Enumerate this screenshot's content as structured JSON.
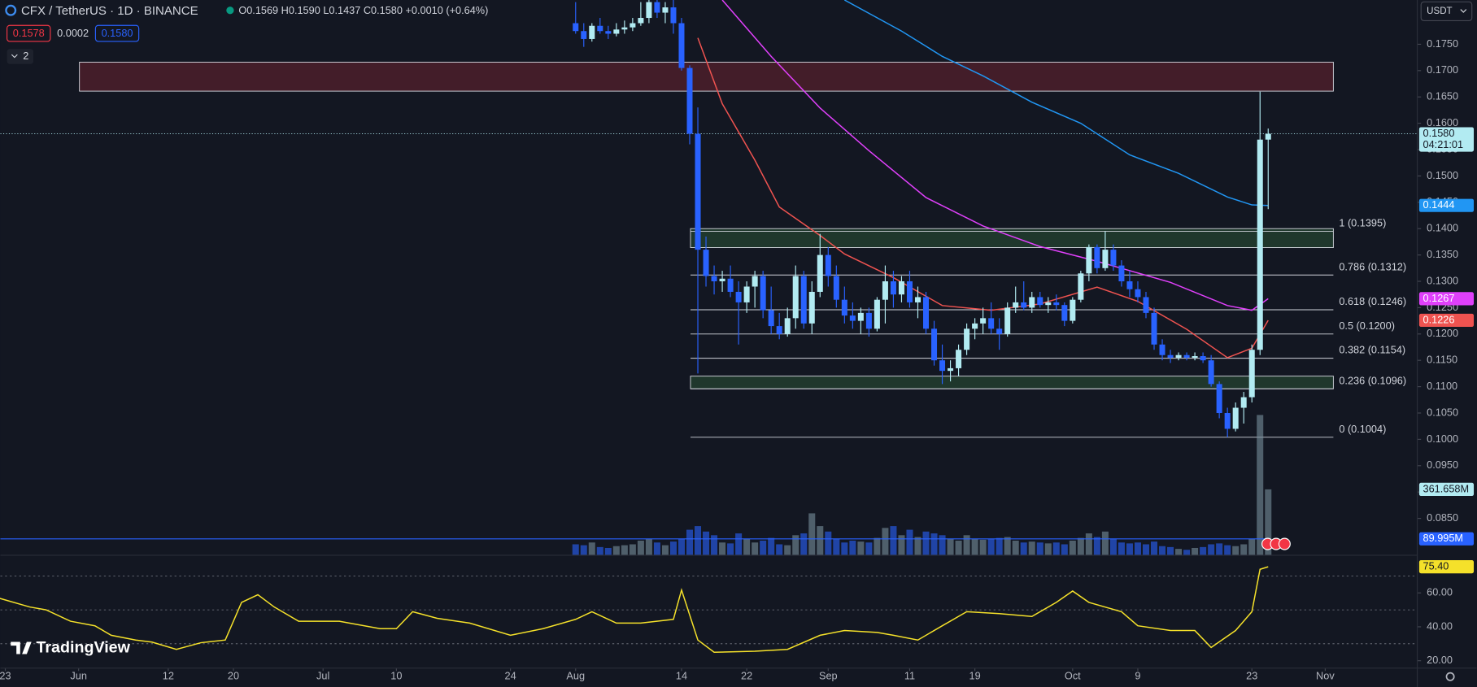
{
  "header": {
    "title": "CFX / TetherUS · 1D · BINANCE",
    "ohlc": [
      "O0.1569",
      "H0.1590",
      "L0.1437",
      "C0.1580",
      "+0.0010 (+0.64%)"
    ],
    "badges": [
      {
        "text": "0.1578",
        "color": "#f23645"
      },
      {
        "text": "0.0002",
        "color": "none"
      },
      {
        "text": "0.1580",
        "color": "#2962ff"
      }
    ],
    "indicator_count": "2",
    "currency": "USDT",
    "brand": "TradingView"
  },
  "chart_data": {
    "type": "candlestick",
    "x": [
      "Aug 1",
      "Aug 2",
      "Aug 3",
      "Aug 4",
      "Aug 5",
      "Aug 6",
      "Aug 7",
      "Aug 8",
      "Aug 9",
      "Aug 10",
      "Aug 11",
      "Aug 12",
      "Aug 13",
      "Aug 14",
      "Aug 15",
      "Aug 16",
      "Aug 17",
      "Aug 18",
      "Aug 19",
      "Aug 20",
      "Aug 21",
      "Aug 22",
      "Aug 23",
      "Aug 24",
      "Aug 25",
      "Aug 26",
      "Aug 27",
      "Aug 28",
      "Aug 29",
      "Aug 30",
      "Aug 31",
      "Sep 1",
      "Sep 2",
      "Sep 3",
      "Sep 4",
      "Sep 5",
      "Sep 6",
      "Sep 7",
      "Sep 8",
      "Sep 9",
      "Sep 10",
      "Sep 11",
      "Sep 12",
      "Sep 13",
      "Sep 14",
      "Sep 15",
      "Sep 16",
      "Sep 17",
      "Sep 18",
      "Sep 19",
      "Sep 20",
      "Sep 21",
      "Sep 22",
      "Sep 23",
      "Sep 24",
      "Sep 25",
      "Sep 26",
      "Sep 27",
      "Sep 28",
      "Sep 29",
      "Sep 30",
      "Oct 1",
      "Oct 2",
      "Oct 3",
      "Oct 4",
      "Oct 5",
      "Oct 6",
      "Oct 7",
      "Oct 8",
      "Oct 9",
      "Oct 10",
      "Oct 11",
      "Oct 12",
      "Oct 13",
      "Oct 14",
      "Oct 15",
      "Oct 16",
      "Oct 17",
      "Oct 18",
      "Oct 19",
      "Oct 20",
      "Oct 21",
      "Oct 22",
      "Oct 23",
      "Oct 24",
      "Oct 25"
    ],
    "open": [
      0.179,
      0.1775,
      0.176,
      0.1785,
      0.1775,
      0.177,
      0.1778,
      0.1782,
      0.179,
      0.18,
      0.183,
      0.181,
      0.182,
      0.179,
      0.1705,
      0.158,
      0.136,
      0.131,
      0.13,
      0.1305,
      0.128,
      0.126,
      0.129,
      0.131,
      0.1245,
      0.1215,
      0.12,
      0.123,
      0.131,
      0.122,
      0.128,
      0.135,
      0.131,
      0.1265,
      0.1235,
      0.1225,
      0.124,
      0.121,
      0.1265,
      0.13,
      0.1275,
      0.13,
      0.126,
      0.127,
      0.121,
      0.115,
      0.113,
      0.1135,
      0.117,
      0.121,
      0.122,
      0.123,
      0.121,
      0.12,
      0.125,
      0.126,
      0.125,
      0.127,
      0.1255,
      0.126,
      0.1255,
      0.1225,
      0.1265,
      0.1315,
      0.1365,
      0.1325,
      0.136,
      0.133,
      0.13,
      0.1285,
      0.127,
      0.124,
      0.118,
      0.116,
      0.1155,
      0.116,
      0.1155,
      0.1158,
      0.115,
      0.1105,
      0.105,
      0.102,
      0.106,
      0.108,
      0.117,
      0.1569
    ],
    "high": [
      0.183,
      0.179,
      0.179,
      0.18,
      0.1785,
      0.179,
      0.1795,
      0.18,
      0.183,
      0.185,
      0.185,
      0.183,
      0.185,
      0.18,
      0.171,
      0.163,
      0.1385,
      0.133,
      0.132,
      0.133,
      0.13,
      0.13,
      0.132,
      0.132,
      0.129,
      0.124,
      0.125,
      0.133,
      0.132,
      0.13,
      0.139,
      0.1365,
      0.133,
      0.129,
      0.126,
      0.125,
      0.125,
      0.127,
      0.133,
      0.132,
      0.131,
      0.132,
      0.129,
      0.128,
      0.1225,
      0.118,
      0.115,
      0.118,
      0.122,
      0.123,
      0.125,
      0.126,
      0.123,
      0.126,
      0.129,
      0.13,
      0.128,
      0.128,
      0.127,
      0.1275,
      0.126,
      0.127,
      0.132,
      0.137,
      0.137,
      0.1395,
      0.137,
      0.134,
      0.132,
      0.13,
      0.128,
      0.125,
      0.119,
      0.117,
      0.1165,
      0.1165,
      0.1165,
      0.1165,
      0.116,
      0.111,
      0.106,
      0.107,
      0.109,
      0.118,
      0.166,
      0.159
    ],
    "low": [
      0.177,
      0.1745,
      0.1755,
      0.177,
      0.176,
      0.1765,
      0.177,
      0.1775,
      0.1785,
      0.179,
      0.18,
      0.179,
      0.177,
      0.17,
      0.156,
      0.1125,
      0.129,
      0.1275,
      0.128,
      0.127,
      0.118,
      0.124,
      0.125,
      0.123,
      0.12,
      0.119,
      0.1195,
      0.121,
      0.121,
      0.12,
      0.127,
      0.129,
      0.125,
      0.122,
      0.121,
      0.12,
      0.1195,
      0.1205,
      0.122,
      0.125,
      0.126,
      0.125,
      0.123,
      0.12,
      0.114,
      0.1105,
      0.111,
      0.112,
      0.116,
      0.119,
      0.12,
      0.12,
      0.117,
      0.1195,
      0.124,
      0.1245,
      0.124,
      0.125,
      0.124,
      0.1245,
      0.1215,
      0.122,
      0.126,
      0.13,
      0.1315,
      0.132,
      0.132,
      0.129,
      0.127,
      0.126,
      0.123,
      0.117,
      0.115,
      0.1145,
      0.115,
      0.115,
      0.115,
      0.1145,
      0.11,
      0.104,
      0.1004,
      0.1015,
      0.103,
      0.107,
      0.116,
      0.1437
    ],
    "close": [
      0.1775,
      0.176,
      0.1785,
      0.1775,
      0.177,
      0.1778,
      0.1782,
      0.179,
      0.18,
      0.183,
      0.181,
      0.182,
      0.179,
      0.1705,
      0.158,
      0.136,
      0.131,
      0.13,
      0.1305,
      0.128,
      0.126,
      0.129,
      0.131,
      0.1245,
      0.1215,
      0.12,
      0.123,
      0.131,
      0.122,
      0.128,
      0.135,
      0.131,
      0.1265,
      0.1235,
      0.1225,
      0.124,
      0.121,
      0.1265,
      0.13,
      0.1275,
      0.13,
      0.126,
      0.127,
      0.121,
      0.115,
      0.113,
      0.1135,
      0.117,
      0.121,
      0.122,
      0.123,
      0.121,
      0.12,
      0.125,
      0.126,
      0.125,
      0.127,
      0.1255,
      0.126,
      0.1255,
      0.1225,
      0.1265,
      0.1315,
      0.1365,
      0.1325,
      0.136,
      0.133,
      0.13,
      0.1285,
      0.127,
      0.124,
      0.118,
      0.116,
      0.1155,
      0.116,
      0.1155,
      0.1158,
      0.115,
      0.1105,
      0.105,
      0.102,
      0.106,
      0.108,
      0.117,
      0.1569,
      0.158
    ],
    "up_color": "#b2ebf2",
    "down_color": "#2962ff",
    "xlim": [
      -70.6,
      103.3
    ],
    "xticks": [
      {
        "value": -70,
        "label": "23"
      },
      {
        "value": -61,
        "label": "Jun"
      },
      {
        "value": -50,
        "label": "12"
      },
      {
        "value": -42,
        "label": "20"
      },
      {
        "value": -31,
        "label": "Jul"
      },
      {
        "value": -22,
        "label": "10"
      },
      {
        "value": -8,
        "label": "24"
      },
      {
        "value": 0,
        "label": "Aug"
      },
      {
        "value": 13,
        "label": "14"
      },
      {
        "value": 21,
        "label": "22"
      },
      {
        "value": 31,
        "label": "Sep"
      },
      {
        "value": 41,
        "label": "11"
      },
      {
        "value": 49,
        "label": "19"
      },
      {
        "value": 61,
        "label": "Oct"
      },
      {
        "value": 69,
        "label": "9"
      },
      {
        "value": 83,
        "label": "23"
      },
      {
        "value": 92,
        "label": "Nov"
      }
    ],
    "ylim": [
      0.078,
      0.1834
    ],
    "yticks": [
      {
        "value": 0.085,
        "label": "0.0850"
      },
      {
        "value": 0.09,
        "label": "0.0900"
      },
      {
        "value": 0.095,
        "label": "0.0950"
      },
      {
        "value": 0.1,
        "label": "0.1000"
      },
      {
        "value": 0.105,
        "label": "0.1050"
      },
      {
        "value": 0.11,
        "label": "0.1100"
      },
      {
        "value": 0.115,
        "label": "0.1150"
      },
      {
        "value": 0.12,
        "label": "0.1200"
      },
      {
        "value": 0.125,
        "label": "0.1250"
      },
      {
        "value": 0.13,
        "label": "0.1300"
      },
      {
        "value": 0.135,
        "label": "0.1350"
      },
      {
        "value": 0.14,
        "label": "0.1400"
      },
      {
        "value": 0.145,
        "label": "0.1450"
      },
      {
        "value": 0.15,
        "label": "0.1500"
      },
      {
        "value": 0.155,
        "label": "0.1550"
      },
      {
        "value": 0.16,
        "label": "0.1600"
      },
      {
        "value": 0.165,
        "label": "0.1650"
      },
      {
        "value": 0.17,
        "label": "0.1700"
      },
      {
        "value": 0.175,
        "label": "0.1750"
      }
    ],
    "moving_averages": [
      {
        "color": "#2196f3",
        "x": [
          33,
          40,
          45,
          50,
          56,
          62,
          68,
          74,
          80,
          83,
          85
        ],
        "values": [
          0.1834,
          0.1775,
          0.1727,
          0.169,
          0.164,
          0.16,
          0.154,
          0.1505,
          0.146,
          0.1445,
          0.1444
        ]
      },
      {
        "color": "#e040fb",
        "x": [
          18,
          24,
          30,
          36,
          43,
          50,
          57,
          64,
          73,
          80,
          83,
          85
        ],
        "values": [
          0.1834,
          0.1727,
          0.1629,
          0.1548,
          0.1459,
          0.1405,
          0.1366,
          0.1338,
          0.1298,
          0.1254,
          0.1245,
          0.1267
        ]
      },
      {
        "color": "#ef5350",
        "x": [
          15,
          18,
          22,
          25,
          30,
          33,
          39,
          45,
          51,
          57,
          64,
          69,
          75,
          80,
          83,
          85
        ],
        "values": [
          0.1762,
          0.1637,
          0.153,
          0.1441,
          0.1387,
          0.1352,
          0.1307,
          0.1254,
          0.1245,
          0.1257,
          0.1289,
          0.1262,
          0.1209,
          0.1155,
          0.1173,
          0.1226
        ]
      }
    ],
    "fib_range": [
      14.1,
      93
    ],
    "fib_levels": [
      {
        "value": 0.1395,
        "label": "1 (0.1395)"
      },
      {
        "value": 0.1312,
        "label": "0.786 (0.1312)"
      },
      {
        "value": 0.1246,
        "label": "0.618 (0.1246)"
      },
      {
        "value": 0.12,
        "label": "0.5 (0.1200)"
      },
      {
        "value": 0.1154,
        "label": "0.382 (0.1154)"
      },
      {
        "value": 0.1096,
        "label": "0.236 (0.1096)"
      },
      {
        "value": 0.1004,
        "label": "0 (0.1004)"
      }
    ],
    "zones": [
      {
        "color": "#f23645",
        "x": [
          -60.9,
          93
        ],
        "y": [
          0.1661,
          0.1716
        ]
      },
      {
        "color": "#4caf50",
        "x": [
          14.1,
          93
        ],
        "y": [
          0.1364,
          0.14
        ]
      },
      {
        "color": "#4caf50",
        "x": [
          14.1,
          93
        ],
        "y": [
          0.1096,
          0.112
        ]
      }
    ],
    "volume": {
      "ylim": [
        0,
        780
      ],
      "up_color": "#78909c",
      "down_color": "#2962ff",
      "values": [
        60,
        55,
        70,
        45,
        40,
        50,
        55,
        60,
        80,
        90,
        70,
        55,
        75,
        90,
        140,
        160,
        130,
        110,
        70,
        65,
        120,
        90,
        70,
        80,
        95,
        60,
        55,
        110,
        120,
        230,
        160,
        130,
        90,
        70,
        80,
        75,
        70,
        95,
        150,
        160,
        110,
        140,
        100,
        130,
        120,
        110,
        90,
        80,
        110,
        90,
        85,
        90,
        95,
        100,
        80,
        70,
        75,
        70,
        65,
        70,
        60,
        80,
        95,
        120,
        100,
        130,
        90,
        70,
        65,
        70,
        60,
        75,
        50,
        45,
        35,
        30,
        40,
        45,
        60,
        65,
        55,
        50,
        60,
        90,
        770,
        361.658
      ]
    },
    "axis_markers": [
      {
        "pane": "price",
        "value": 0.158,
        "label": "0.1580",
        "sub": "04:21:01",
        "bg": "#b2ebf2",
        "fg": "#131722",
        "line": true
      },
      {
        "pane": "price",
        "value": 0.1444,
        "label": "0.1444",
        "bg": "#2196f3",
        "fg": "#ffffff"
      },
      {
        "pane": "price",
        "value": 0.1267,
        "label": "0.1267",
        "bg": "#e040fb",
        "fg": "#ffffff"
      },
      {
        "pane": "price",
        "value": 0.1226,
        "label": "0.1226",
        "bg": "#ef5350",
        "fg": "#ffffff"
      },
      {
        "pane": "volume",
        "value": 361.658,
        "label": "361.658M",
        "bg": "#b2ebf2",
        "fg": "#131722"
      },
      {
        "pane": "volume",
        "value": 89.995,
        "label": "89.995M",
        "bg": "#2962ff",
        "fg": "#ffffff",
        "line_color": "#2962ff"
      }
    ]
  },
  "rsi": {
    "type": "line",
    "color": "#f5e12a",
    "x": [
      -71,
      -67,
      -65,
      -62,
      -59,
      -57,
      -54,
      -52,
      -49,
      -46,
      -43,
      -41,
      -39,
      -37,
      -34,
      -29,
      -24,
      -22,
      -20,
      -17,
      -13,
      -8,
      -4,
      0,
      2,
      5,
      8,
      12,
      13,
      15,
      17,
      22,
      26,
      30,
      33,
      37,
      39,
      42,
      45,
      48,
      52,
      56,
      59,
      61,
      63,
      67,
      69,
      73,
      76,
      78,
      81,
      83,
      84,
      85
    ],
    "values": [
      57.2,
      51.7,
      50,
      43.3,
      40.6,
      35,
      32.2,
      31,
      26.7,
      30.6,
      32.2,
      54.4,
      58.9,
      51.7,
      43.3,
      43.3,
      38.9,
      38.9,
      48.9,
      45,
      42.2,
      35,
      38.9,
      44.4,
      48.9,
      42.2,
      42.2,
      44.4,
      61.7,
      32.2,
      25,
      25.6,
      26.7,
      35,
      37.8,
      36.7,
      35,
      32.2,
      40.6,
      48.9,
      47.8,
      46.1,
      54.4,
      61.1,
      54.4,
      48.9,
      40.6,
      37.8,
      37.8,
      27.8,
      37.8,
      48.9,
      73.9,
      75.4
    ],
    "ylim": [
      15.6,
      82.2
    ],
    "yticks": [
      {
        "value": 20,
        "label": "20.00"
      },
      {
        "value": 40,
        "label": "40.00"
      },
      {
        "value": 60,
        "label": "60.00"
      }
    ],
    "levels": [
      30,
      50,
      70
    ],
    "marker": {
      "value": 75.4,
      "label": "75.40",
      "bg": "#f5e12a",
      "fg": "#131722"
    }
  }
}
